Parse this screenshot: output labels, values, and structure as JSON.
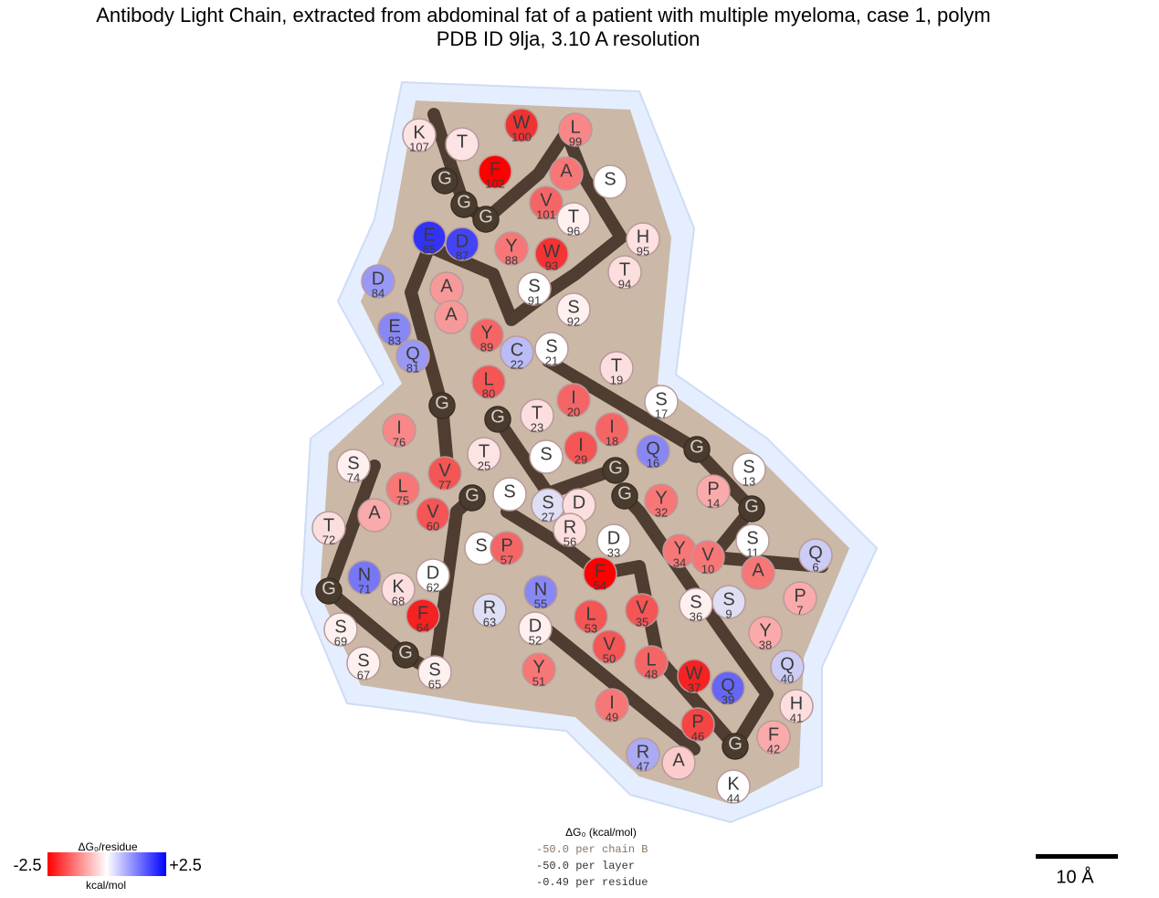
{
  "title": [
    "Antibody Light Chain, extracted from abdominal fat of a patient with multiple myeloma, case 1, polym",
    "PDB ID 9lja, 3.10 A resolution"
  ],
  "residues": [
    {
      "letter": "K",
      "number": 107,
      "color": "#fde3e3"
    },
    {
      "letter": "T",
      "color": "#fde3e3"
    },
    {
      "letter": "G",
      "color": "#4a3b2f"
    },
    {
      "letter": "G",
      "color": "#4a3b2f"
    },
    {
      "letter": "W",
      "number": 100,
      "color": "#ee3333"
    },
    {
      "letter": "L",
      "number": 99,
      "color": "#f88888"
    },
    {
      "letter": "F",
      "number": 102,
      "color": "#ff0000"
    },
    {
      "letter": "S",
      "color": "#ffffff"
    },
    {
      "letter": "A",
      "color": "#f77777"
    },
    {
      "letter": "V",
      "number": 101,
      "color": "#f46666"
    },
    {
      "letter": "G",
      "color": "#4a3b2f"
    },
    {
      "letter": "T",
      "number": 96,
      "color": "#fff0f0"
    },
    {
      "letter": "H",
      "number": 95,
      "color": "#fde0e0"
    },
    {
      "letter": "E",
      "number": 85,
      "color": "#3333f5"
    },
    {
      "letter": "D",
      "number": 87,
      "color": "#4444f5"
    },
    {
      "letter": "Y",
      "number": 88,
      "color": "#f77777"
    },
    {
      "letter": "W",
      "number": 93,
      "color": "#f53333"
    },
    {
      "letter": "T",
      "number": 94,
      "color": "#fddede"
    },
    {
      "letter": "D",
      "number": 84,
      "color": "#9999f5"
    },
    {
      "letter": "A",
      "color": "#f89999"
    },
    {
      "letter": "S",
      "number": 91,
      "color": "#ffffff"
    },
    {
      "letter": "S",
      "number": 92,
      "color": "#fff0f0"
    },
    {
      "letter": "A",
      "color": "#f89999"
    },
    {
      "letter": "E",
      "number": 83,
      "color": "#8888f5"
    },
    {
      "letter": "Y",
      "number": 89,
      "color": "#f46666"
    },
    {
      "letter": "C",
      "number": 22,
      "color": "#bbbbf5"
    },
    {
      "letter": "S",
      "number": 21,
      "color": "#ffffff"
    },
    {
      "letter": "T",
      "number": 19,
      "color": "#fddede"
    },
    {
      "letter": "Q",
      "number": 81,
      "color": "#9999f5"
    },
    {
      "letter": "L",
      "number": 80,
      "color": "#f45555"
    },
    {
      "letter": "G",
      "color": "#4a3b2f"
    },
    {
      "letter": "T",
      "number": 23,
      "color": "#fddede"
    },
    {
      "letter": "I",
      "number": 20,
      "color": "#f46666"
    },
    {
      "letter": "S",
      "number": 17,
      "color": "#ffffff"
    },
    {
      "letter": "I",
      "number": 76,
      "color": "#f88888"
    },
    {
      "letter": "G",
      "color": "#4a3b2f"
    },
    {
      "letter": "I",
      "number": 18,
      "color": "#f46666"
    },
    {
      "letter": "T",
      "number": 25,
      "color": "#fde3e3"
    },
    {
      "letter": "S",
      "color": "#ffffff"
    },
    {
      "letter": "I",
      "number": 29,
      "color": "#f45555"
    },
    {
      "letter": "Q",
      "number": 16,
      "color": "#8888f5"
    },
    {
      "letter": "G",
      "color": "#4a3b2f"
    },
    {
      "letter": "S",
      "number": 74,
      "color": "#fff0f0"
    },
    {
      "letter": "V",
      "number": 77,
      "color": "#f45555"
    },
    {
      "letter": "G",
      "color": "#4a3b2f"
    },
    {
      "letter": "P",
      "number": 14,
      "color": "#faaaaa"
    },
    {
      "letter": "S",
      "number": 13,
      "color": "#ffffff"
    },
    {
      "letter": "L",
      "number": 75,
      "color": "#f77777"
    },
    {
      "letter": "G",
      "color": "#4a3b2f"
    },
    {
      "letter": "S",
      "color": "#ffffff"
    },
    {
      "letter": "S",
      "number": 27,
      "color": "#dedef5"
    },
    {
      "letter": "D",
      "color": "#fddede"
    },
    {
      "letter": "Y",
      "number": 32,
      "color": "#f77777"
    },
    {
      "letter": "G",
      "color": "#4a3b2f"
    },
    {
      "letter": "V",
      "number": 60,
      "color": "#f45555"
    },
    {
      "letter": "A",
      "color": "#faaaaa"
    },
    {
      "letter": "T",
      "number": 72,
      "color": "#fddede"
    },
    {
      "letter": "R",
      "number": 56,
      "color": "#fddede"
    },
    {
      "letter": "D",
      "number": 33,
      "color": "#ffffff"
    },
    {
      "letter": "G",
      "color": "#4a3b2f"
    },
    {
      "letter": "S",
      "number": 11,
      "color": "#ffffff"
    },
    {
      "letter": "Q",
      "number": 6,
      "color": "#ccccf5"
    },
    {
      "letter": "S",
      "color": "#ffffff"
    },
    {
      "letter": "P",
      "number": 57,
      "color": "#f46666"
    },
    {
      "letter": "Y",
      "number": 34,
      "color": "#f77777"
    },
    {
      "letter": "V",
      "number": 10,
      "color": "#f77777"
    },
    {
      "letter": "D",
      "number": 62,
      "color": "#ffffff"
    },
    {
      "letter": "N",
      "number": 71,
      "color": "#7777f5"
    },
    {
      "letter": "K",
      "number": 68,
      "color": "#fddede"
    },
    {
      "letter": "N",
      "number": 55,
      "color": "#8888f5"
    },
    {
      "letter": "F",
      "number": 54,
      "color": "#ff0000"
    },
    {
      "letter": "A",
      "color": "#f77777"
    },
    {
      "letter": "P",
      "number": 7,
      "color": "#faaaaa"
    },
    {
      "letter": "G",
      "color": "#4a3b2f"
    },
    {
      "letter": "R",
      "number": 63,
      "color": "#dedef5"
    },
    {
      "letter": "S",
      "number": 36,
      "color": "#fff0f0"
    },
    {
      "letter": "S",
      "number": 9,
      "color": "#dedef5"
    },
    {
      "letter": "F",
      "number": 64,
      "color": "#f52222"
    },
    {
      "letter": "L",
      "number": 53,
      "color": "#f45555"
    },
    {
      "letter": "V",
      "number": 35,
      "color": "#f45555"
    },
    {
      "letter": "Y",
      "number": 38,
      "color": "#faaaaa"
    },
    {
      "letter": "S",
      "number": 69,
      "color": "#fff0f0"
    },
    {
      "letter": "D",
      "number": 52,
      "color": "#fff0f0"
    },
    {
      "letter": "S",
      "number": 67,
      "color": "#fff0f0"
    },
    {
      "letter": "G",
      "color": "#4a3b2f"
    },
    {
      "letter": "S",
      "number": 65,
      "color": "#fff0f0"
    },
    {
      "letter": "V",
      "number": 50,
      "color": "#f45555"
    },
    {
      "letter": "L",
      "number": 48,
      "color": "#f46666"
    },
    {
      "letter": "W",
      "number": 37,
      "color": "#f52222"
    },
    {
      "letter": "Q",
      "number": 40,
      "color": "#ccccf5"
    },
    {
      "letter": "Y",
      "number": 51,
      "color": "#f77777"
    },
    {
      "letter": "Q",
      "number": 39,
      "color": "#6666f5"
    },
    {
      "letter": "H",
      "number": 41,
      "color": "#fddede"
    },
    {
      "letter": "I",
      "number": 49,
      "color": "#f77777"
    },
    {
      "letter": "P",
      "number": 46,
      "color": "#f44444"
    },
    {
      "letter": "F",
      "number": 42,
      "color": "#faaaaa"
    },
    {
      "letter": "G",
      "color": "#4a3b2f"
    },
    {
      "letter": "R",
      "number": 47,
      "color": "#aaaaf5"
    },
    {
      "letter": "A",
      "color": "#fccccc"
    },
    {
      "letter": "K",
      "number": 44,
      "color": "#ffffff"
    }
  ],
  "legend": {
    "title": "ΔG₀/residue",
    "min": "-2.5",
    "max": "+2.5",
    "unit": "kcal/mol"
  },
  "energy": {
    "title": "ΔG₀ (kcal/mol)",
    "lines": [
      "-50.0 per chain B",
      "-50.0 per layer",
      "-0.49 per residue"
    ]
  },
  "scale_bar": "10 Å"
}
